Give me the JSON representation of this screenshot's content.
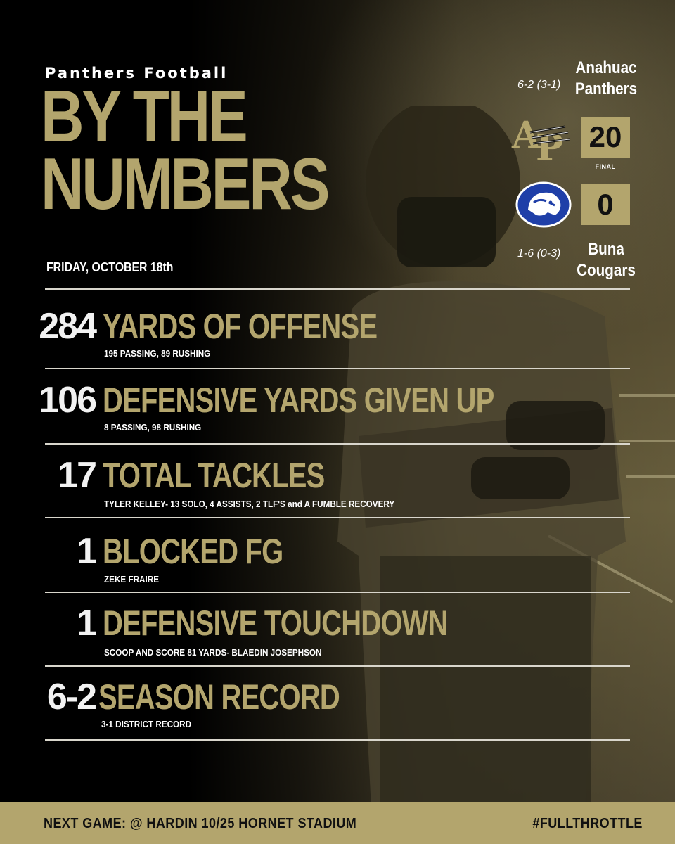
{
  "header": {
    "kicker": "Panthers Football",
    "headline_line1": "BY THE",
    "headline_line2": "NUMBERS",
    "date": "FRIDAY, OCTOBER 18th"
  },
  "scoreboard": {
    "home": {
      "name_line1": "Anahuac",
      "name_line2": "Panthers",
      "record": "6-2 (3-1)",
      "score": "20",
      "logo_icon": "ap-panther-logo"
    },
    "away": {
      "name_line1": "Buna",
      "name_line2": "Cougars",
      "record": "1-6 (0-3)",
      "score": "0",
      "logo_icon": "cougar-head-logo"
    },
    "status": "FINAL"
  },
  "stats": [
    {
      "number": "284",
      "title": "YARDS OF OFFENSE",
      "detail": "195 PASSING,  89 RUSHING"
    },
    {
      "number": "106",
      "title": "DEFENSIVE YARDS GIVEN UP",
      "detail": "8 PASSING, 98 RUSHING"
    },
    {
      "number": "17",
      "title": "TOTAL TACKLES",
      "detail": "TYLER KELLEY- 13 SOLO, 4 ASSISTS, 2 TLF'S and A FUMBLE RECOVERY"
    },
    {
      "number": "1",
      "title": "BLOCKED FG",
      "detail": "ZEKE FRAIRE"
    },
    {
      "number": "1",
      "title": "DEFENSIVE TOUCHDOWN",
      "detail": "SCOOP AND SCORE 81 YARDS- BLAEDIN JOSEPHSON"
    },
    {
      "number": "6-2",
      "title": "SEASON RECORD",
      "detail": "3-1 DISTRICT RECORD"
    }
  ],
  "footer": {
    "next_game": "NEXT GAME:  @ HARDIN 10/25 HORNET STADIUM",
    "hashtag": "#FULLTHROTTLE"
  },
  "colors": {
    "gold": "#b3a56d",
    "background": "#000000",
    "cougar_blue": "#1f3fa8"
  }
}
